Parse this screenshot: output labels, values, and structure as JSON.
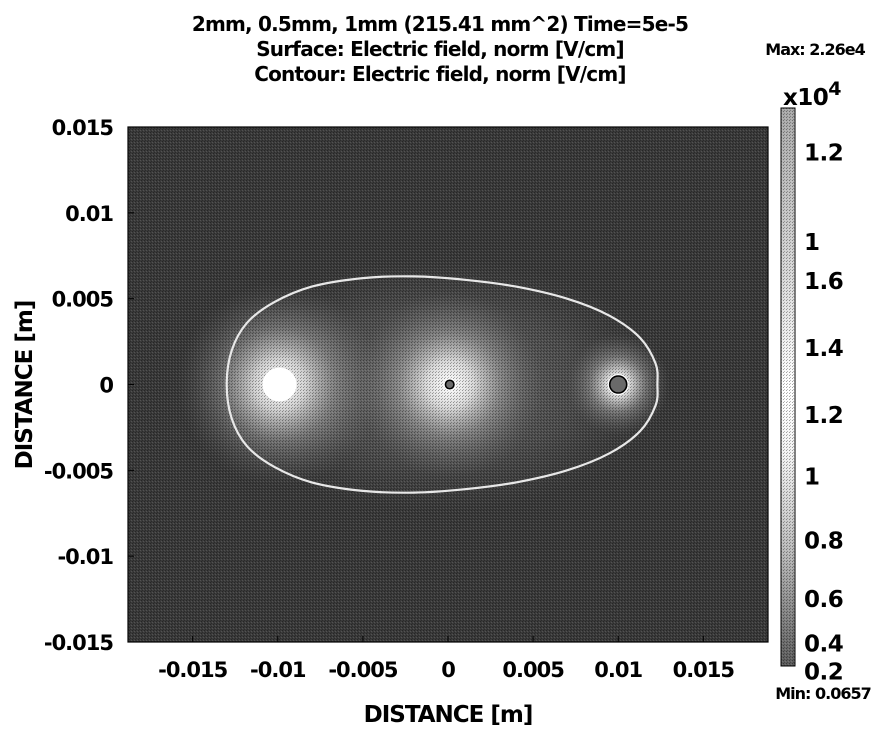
{
  "chart_data": {
    "type": "heatmap",
    "title": [
      "2mm, 0.5mm, 1mm (215.41 mm^2) Time=5e-5",
      "Surface: Electric field, norm [V/cm]",
      "Contour: Electric field, norm [V/cm]"
    ],
    "xlabel": "DISTANCE [m]",
    "ylabel": "DISTANCE [m]",
    "xlim": [
      -0.0188,
      0.0188
    ],
    "ylim": [
      -0.015,
      0.015
    ],
    "x_ticks": [
      {
        "value": -0.015,
        "label": "-0.015"
      },
      {
        "value": -0.01,
        "label": "-0.01"
      },
      {
        "value": -0.005,
        "label": "-0.005"
      },
      {
        "value": 0,
        "label": "0"
      },
      {
        "value": 0.005,
        "label": "0.005"
      },
      {
        "value": 0.01,
        "label": "0.01"
      },
      {
        "value": 0.015,
        "label": "0.015"
      }
    ],
    "y_ticks": [
      {
        "value": 0.015,
        "label": "0.015"
      },
      {
        "value": 0.01,
        "label": "0.01"
      },
      {
        "value": 0.005,
        "label": "0.005"
      },
      {
        "value": 0,
        "label": "0"
      },
      {
        "value": -0.005,
        "label": "-0.005"
      },
      {
        "value": -0.01,
        "label": "-0.01"
      },
      {
        "value": -0.015,
        "label": "-0.015"
      }
    ],
    "electrodes": [
      {
        "name": "electrode-left",
        "x": -0.0099,
        "y": 0,
        "radius": 0.001,
        "glow": 0.006
      },
      {
        "name": "electrode-center",
        "x": 0.0001,
        "y": 0,
        "radius": 0.00025,
        "glow": 0.0055
      },
      {
        "name": "electrode-right",
        "x": 0.01,
        "y": 0,
        "radius": 0.0005,
        "glow": 0.003
      }
    ],
    "contour": {
      "points": [
        [
          -0.013,
          0.0
        ],
        [
          -0.0127,
          0.002
        ],
        [
          -0.0118,
          0.0036
        ],
        [
          -0.0102,
          0.0048
        ],
        [
          -0.008,
          0.0057
        ],
        [
          -0.005,
          0.0062
        ],
        [
          -0.002,
          0.0063
        ],
        [
          0.001,
          0.0061
        ],
        [
          0.004,
          0.0057
        ],
        [
          0.007,
          0.005
        ],
        [
          0.0095,
          0.004
        ],
        [
          0.0113,
          0.0027
        ],
        [
          0.0122,
          0.0012
        ],
        [
          0.0123,
          0.0
        ],
        [
          0.0122,
          -0.0012
        ],
        [
          0.0113,
          -0.0027
        ],
        [
          0.0095,
          -0.004
        ],
        [
          0.007,
          -0.005
        ],
        [
          0.004,
          -0.0057
        ],
        [
          0.001,
          -0.0061
        ],
        [
          -0.002,
          -0.0063
        ],
        [
          -0.005,
          -0.0062
        ],
        [
          -0.008,
          -0.0057
        ],
        [
          -0.0102,
          -0.0048
        ],
        [
          -0.0118,
          -0.0036
        ],
        [
          -0.0127,
          -0.002
        ]
      ]
    },
    "colorbar": {
      "max_label": "Max: 2.26e4",
      "min_label": "Min: 0.0657",
      "multiplier_base": "x10",
      "multiplier_exp": "4",
      "ticks": [
        {
          "frac": 0.055,
          "label": "1.2"
        },
        {
          "frac": 0.215,
          "label": "1"
        },
        {
          "frac": 0.285,
          "label": "1.6"
        },
        {
          "frac": 0.405,
          "label": "1.4"
        },
        {
          "frac": 0.525,
          "label": "1.2"
        },
        {
          "frac": 0.635,
          "label": "1"
        },
        {
          "frac": 0.75,
          "label": "0.8"
        },
        {
          "frac": 0.855,
          "label": "0.6"
        },
        {
          "frac": 0.935,
          "label": "0.4"
        },
        {
          "frac": 0.985,
          "label": "0.2"
        }
      ]
    },
    "grid": false,
    "colors": {
      "background": "#ffffff",
      "field_low": "#3a3a3a",
      "field_high": "#ffffff",
      "contour": "#e8e8e8",
      "text": "#000000"
    }
  }
}
